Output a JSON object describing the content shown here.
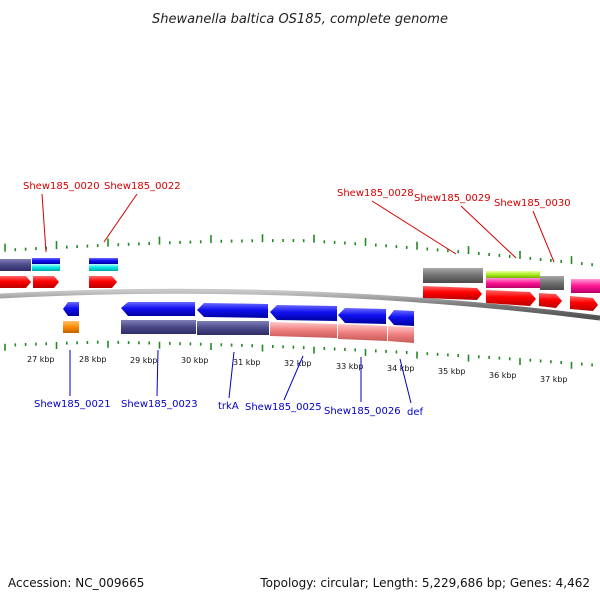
{
  "title": "Shewanella baltica OS185, complete genome",
  "footer": {
    "accession": "Accession: NC_009665",
    "summary": "Topology: circular; Length: 5,229,686 bp; Genes: 4,462"
  },
  "kbp_ticks": [
    "27 kbp",
    "28 kbp",
    "29 kbp",
    "30 kbp",
    "31 kbp",
    "32 kbp",
    "33 kbp",
    "34 kbp",
    "35 kbp",
    "36 kbp",
    "37 kbp"
  ],
  "top_labels": [
    "Shew185_0020",
    "Shew185_0022",
    "Shew185_0028",
    "Shew185_0029",
    "Shew185_0030"
  ],
  "bottom_labels": [
    "Shew185_0021",
    "Shew185_0023",
    "trkA",
    "Shew185_0025",
    "Shew185_0026",
    "def"
  ],
  "colors": {
    "forward_gene": "#ff0000",
    "reverse_gene": "#0000ee",
    "tick_green": "#228b22",
    "backbone": "#888888",
    "top_label": "#d40000",
    "bottom_label": "#0000c8"
  }
}
